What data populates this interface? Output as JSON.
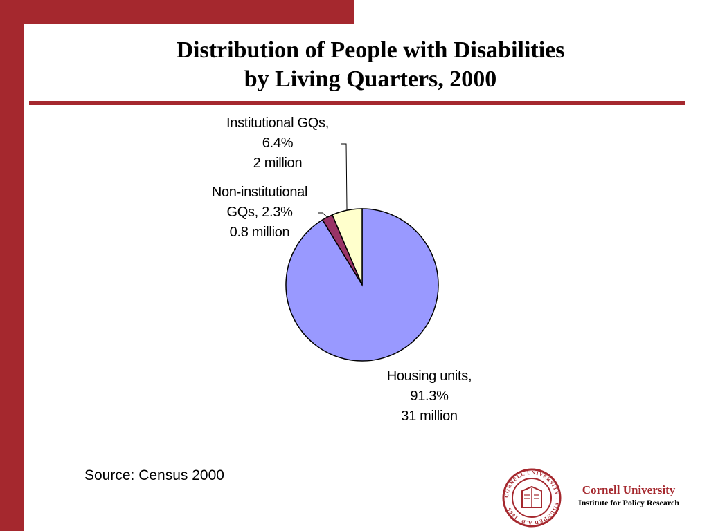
{
  "slide": {
    "title_line1": "Distribution of People with Disabilities",
    "title_line2": "by Living Quarters, 2000",
    "source": "Source: Census 2000"
  },
  "colors": {
    "accent": "#a5282e",
    "housing": "#9999ff",
    "non_institutional": "#993366",
    "institutional": "#ffffcc"
  },
  "chart_data": {
    "type": "pie",
    "title": "Distribution of People with Disabilities by Living Quarters, 2000",
    "slices": [
      {
        "name": "Housing units",
        "percent": 91.3,
        "value_label": "31 million",
        "color": "#9999ff",
        "label_lines": [
          "Housing units,",
          "91.3%",
          "31 million"
        ]
      },
      {
        "name": "Non-institutional GQs",
        "percent": 2.3,
        "value_label": "0.8 million",
        "color": "#993366",
        "label_lines": [
          "Non-institutional",
          "GQs, 2.3%",
          "0.8 million"
        ]
      },
      {
        "name": "Institutional GQs",
        "percent": 6.4,
        "value_label": "2 million",
        "color": "#ffffcc",
        "label_lines": [
          "Institutional GQs,",
          "6.4%",
          "2 million"
        ]
      }
    ],
    "legend": "none"
  },
  "logo": {
    "name": "Cornell University",
    "subtitle": "Institute for Policy Research",
    "seal_text": "CORNELL UNIVERSITY · FOUNDED A.D. 1865"
  }
}
